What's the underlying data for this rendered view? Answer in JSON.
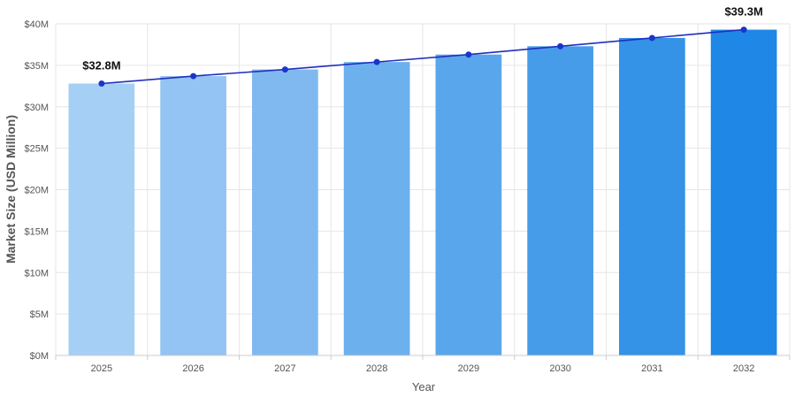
{
  "chart_data": {
    "type": "bar",
    "categories": [
      "2025",
      "2026",
      "2027",
      "2028",
      "2029",
      "2030",
      "2031",
      "2032"
    ],
    "series": [
      {
        "values": [
          32.8,
          33.7,
          34.5,
          35.4,
          36.3,
          37.3,
          38.3,
          39.3
        ]
      }
    ],
    "line_overlay": true,
    "xlabel": "Year",
    "ylabel": "Market Size (USD Million)",
    "ylim": [
      0,
      40
    ],
    "yticks": [
      "$0M",
      "$5M",
      "$10M",
      "$15M",
      "$20M",
      "$25M",
      "$30M",
      "$35M",
      "$40M"
    ],
    "annotations": [
      {
        "category": "2025",
        "text": "$32.8M"
      },
      {
        "category": "2032",
        "text": "$39.3M"
      }
    ],
    "grid": true,
    "colors": {
      "bars": [
        "#a6cff5",
        "#93c4f3",
        "#80b9f0",
        "#6db0ee",
        "#5aa6ec",
        "#479ce9",
        "#3492e7",
        "#1f87e5"
      ],
      "line": "#1f2fbf",
      "points": "#1a35c9",
      "grid": "#e6e6e6"
    }
  }
}
